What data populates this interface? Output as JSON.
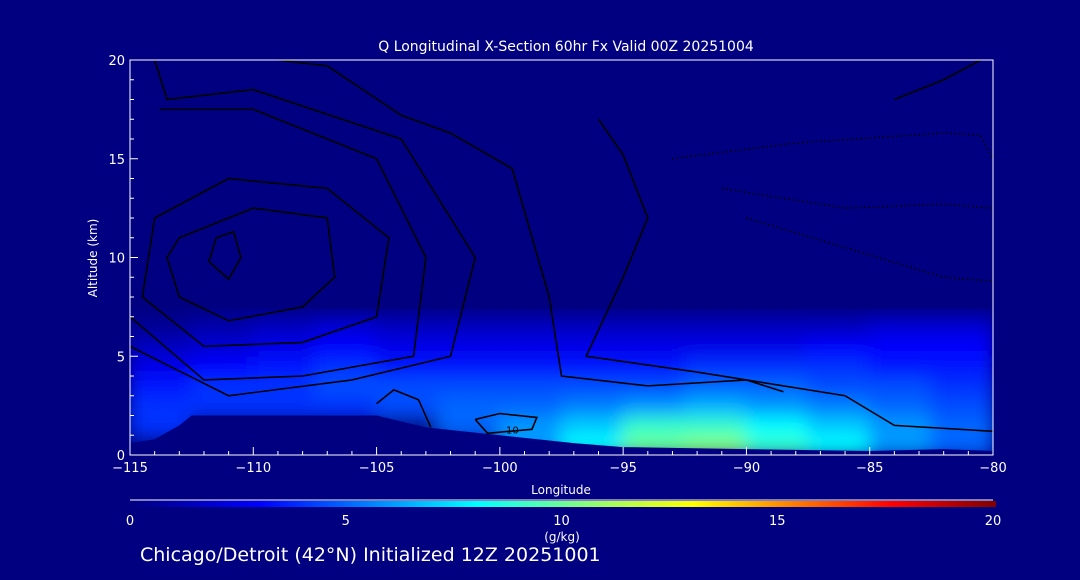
{
  "chart_data": {
    "type": "heatmap",
    "title": "Q Longitudinal X-Section 60hr  Fx Valid 00Z 20251004",
    "xlabel": "Longitude",
    "ylabel": "Altitude (km)",
    "xlim": [
      -115,
      -80
    ],
    "ylim": [
      0,
      20
    ],
    "xticks": [
      "-115",
      "-110",
      "-105",
      "-100",
      "-95",
      "-90",
      "-85",
      "-80"
    ],
    "yticks": [
      "0",
      "5",
      "10",
      "15",
      "20"
    ],
    "colorbar": {
      "label": "(g/kg)",
      "range": [
        0,
        20
      ],
      "ticks": [
        "0",
        "5",
        "10",
        "15",
        "20"
      ],
      "colors": [
        "#000080",
        "#0000ff",
        "#00ffff",
        "#a0ff60",
        "#ffff00",
        "#ff0000",
        "#800000"
      ]
    },
    "grid": {
      "lon_edges": [
        -115,
        -112.5,
        -110,
        -107.5,
        -105,
        -102.5,
        -100,
        -97.5,
        -95,
        -92.5,
        -90,
        -87.5,
        -85,
        -82.5,
        -80
      ],
      "alt_edges": [
        0,
        1,
        2,
        3,
        4,
        5,
        6,
        7
      ],
      "values": [
        [
          0,
          0,
          0,
          0,
          0,
          0,
          6,
          8,
          10,
          10.5,
          9,
          8,
          6,
          5
        ],
        [
          4,
          0,
          0,
          0,
          0,
          5,
          6,
          7,
          9,
          9,
          8,
          7,
          6,
          5
        ],
        [
          4,
          4,
          4,
          4,
          4.5,
          5,
          5,
          5.5,
          6,
          6.5,
          6,
          5.5,
          5,
          4.5
        ],
        [
          3.5,
          4,
          4,
          4.5,
          4.5,
          4.5,
          4.5,
          4.5,
          4.5,
          5,
          5,
          4.5,
          4.5,
          4
        ],
        [
          2.5,
          3,
          3.5,
          4,
          3.5,
          3.5,
          3.5,
          3.5,
          3.5,
          4,
          4,
          4,
          3.5,
          3.5
        ],
        [
          1.5,
          2,
          2.5,
          3,
          2.5,
          2.5,
          2.5,
          2.5,
          2.5,
          2.5,
          2.5,
          3,
          3,
          3
        ],
        [
          0.5,
          1,
          1.5,
          2,
          1.5,
          1.5,
          1.5,
          1.5,
          1.5,
          1.5,
          1.5,
          1.5,
          2,
          2
        ]
      ]
    },
    "terrain": [
      [
        -115,
        0.6
      ],
      [
        -114,
        0.8
      ],
      [
        -113,
        1.5
      ],
      [
        -112.5,
        2.0
      ],
      [
        -105,
        2.0
      ],
      [
        -103,
        1.4
      ],
      [
        -100,
        1.0
      ],
      [
        -97,
        0.6
      ],
      [
        -95,
        0.4
      ],
      [
        -90,
        0.3
      ],
      [
        -85,
        0.2
      ],
      [
        -82,
        0.3
      ],
      [
        -80,
        0.2
      ]
    ],
    "contours": [
      {
        "label": "",
        "style": "solid",
        "points": [
          [
            -111.5,
            11
          ],
          [
            -110.8,
            11.3
          ],
          [
            -110.5,
            10
          ],
          [
            -111,
            8.9
          ],
          [
            -111.8,
            9.8
          ],
          [
            -111.5,
            11
          ]
        ]
      },
      {
        "label": "",
        "style": "solid",
        "points": [
          [
            -113,
            11
          ],
          [
            -110,
            12.5
          ],
          [
            -107,
            12
          ],
          [
            -106.7,
            9
          ],
          [
            -108,
            7.5
          ],
          [
            -111,
            6.8
          ],
          [
            -113,
            8
          ],
          [
            -113.5,
            10
          ],
          [
            -113,
            11
          ]
        ]
      },
      {
        "label": "",
        "style": "solid",
        "points": [
          [
            -114,
            12
          ],
          [
            -111,
            14
          ],
          [
            -107,
            13.5
          ],
          [
            -104.5,
            11
          ],
          [
            -105,
            7
          ],
          [
            -108,
            5.7
          ],
          [
            -112,
            5.5
          ],
          [
            -114.5,
            8
          ],
          [
            -114,
            12
          ]
        ]
      },
      {
        "label": "",
        "style": "solid",
        "points": [
          [
            -113.8,
            17.5
          ],
          [
            -110,
            17.5
          ],
          [
            -105,
            15
          ],
          [
            -103,
            10
          ],
          [
            -103.5,
            5
          ],
          [
            -108,
            4
          ],
          [
            -112,
            3.8
          ],
          [
            -115,
            7
          ]
        ]
      },
      {
        "label": "",
        "style": "solid",
        "points": [
          [
            -114,
            20
          ],
          [
            -113.5,
            18
          ],
          [
            -110,
            18.5
          ],
          [
            -104,
            16
          ],
          [
            -101,
            10
          ],
          [
            -102,
            5
          ],
          [
            -106,
            3.8
          ],
          [
            -111,
            3
          ],
          [
            -115,
            5.5
          ]
        ]
      },
      {
        "label": "",
        "style": "solid",
        "points": [
          [
            -109,
            20
          ],
          [
            -107,
            19.7
          ],
          [
            -104,
            17.2
          ],
          [
            -102,
            16.3
          ],
          [
            -99.5,
            14.5
          ],
          [
            -98,
            8
          ],
          [
            -97.5,
            4
          ],
          [
            -94,
            3.5
          ],
          [
            -90,
            3.8
          ],
          [
            -88.5,
            3.2
          ]
        ]
      },
      {
        "label": "",
        "style": "solid",
        "points": [
          [
            -96,
            17
          ],
          [
            -95,
            15.2
          ],
          [
            -94,
            12
          ],
          [
            -95,
            9
          ],
          [
            -96.5,
            5
          ],
          [
            -92,
            4.2
          ],
          [
            -86,
            3
          ],
          [
            -84,
            1.5
          ],
          [
            -80,
            1.2
          ]
        ]
      },
      {
        "label": "10",
        "style": "solid",
        "points": [
          [
            -101,
            1.8
          ],
          [
            -100,
            2.1
          ],
          [
            -98.5,
            1.9
          ],
          [
            -98.7,
            1.3
          ],
          [
            -100.5,
            1.1
          ],
          [
            -101,
            1.8
          ]
        ]
      },
      {
        "label": "",
        "style": "solid",
        "points": [
          [
            -105,
            2.6
          ],
          [
            -104.3,
            3.3
          ],
          [
            -103.3,
            2.8
          ],
          [
            -102.8,
            1.4
          ]
        ]
      },
      {
        "label": "",
        "style": "dotted",
        "points": [
          [
            -93,
            15
          ],
          [
            -88,
            15.8
          ],
          [
            -82,
            16.3
          ],
          [
            -80.5,
            16.2
          ],
          [
            -80,
            15
          ]
        ]
      },
      {
        "label": "",
        "style": "dotted",
        "points": [
          [
            -91,
            13.5
          ],
          [
            -86,
            12.5
          ],
          [
            -82,
            12.7
          ],
          [
            -80,
            12.5
          ]
        ]
      },
      {
        "label": "",
        "style": "dotted",
        "points": [
          [
            -90,
            12
          ],
          [
            -86,
            10.5
          ],
          [
            -82,
            9
          ],
          [
            -80,
            8.8
          ]
        ]
      },
      {
        "label": "",
        "style": "solid",
        "points": [
          [
            -84,
            18
          ],
          [
            -82,
            19
          ],
          [
            -80.5,
            20
          ]
        ]
      }
    ]
  },
  "footer": {
    "location_text": "Chicago/Detroit (42°N) Initialized 12Z 20251001"
  }
}
